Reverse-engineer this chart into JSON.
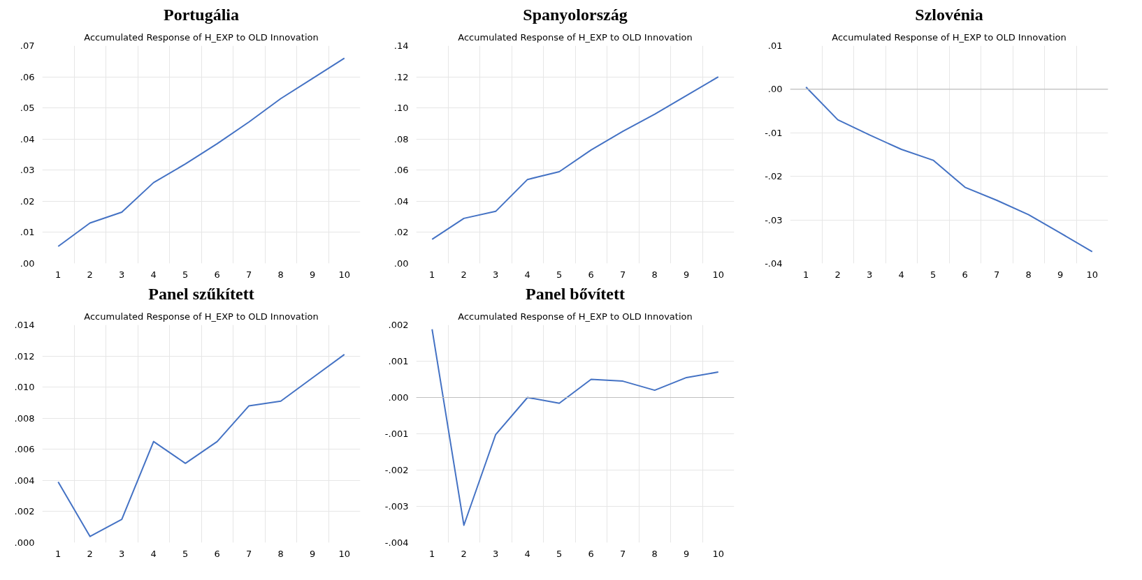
{
  "chart_data": [
    {
      "type": "line",
      "title": "Portugália",
      "subtitle": "Accumulated Response of H_EXP to OLD Innovation",
      "categories": [
        "1",
        "2",
        "3",
        "4",
        "5",
        "6",
        "7",
        "8",
        "9",
        "10"
      ],
      "series": [
        {
          "color": "#4472c4",
          "values": [
            0.0055,
            0.013,
            0.0165,
            0.026,
            0.032,
            0.0385,
            0.0455,
            0.053,
            0.0595,
            0.066
          ]
        }
      ],
      "ylim": [
        0,
        0.07
      ],
      "yticks": [
        {
          "value": 0,
          "label": ".00"
        },
        {
          "value": 0.01,
          "label": ".01"
        },
        {
          "value": 0.02,
          "label": ".02"
        },
        {
          "value": 0.03,
          "label": ".03"
        },
        {
          "value": 0.04,
          "label": ".04"
        },
        {
          "value": 0.05,
          "label": ".05"
        },
        {
          "value": 0.06,
          "label": ".06"
        },
        {
          "value": 0.07,
          "label": ".07"
        }
      ],
      "grid": true
    },
    {
      "type": "line",
      "title": "Spanyolország",
      "subtitle": "Accumulated Response of H_EXP to OLD Innovation",
      "categories": [
        "1",
        "2",
        "3",
        "4",
        "5",
        "6",
        "7",
        "8",
        "9",
        "10"
      ],
      "series": [
        {
          "color": "#4472c4",
          "values": [
            0.0155,
            0.029,
            0.0335,
            0.054,
            0.059,
            0.073,
            0.085,
            0.096,
            0.108,
            0.12
          ]
        }
      ],
      "ylim": [
        0,
        0.14
      ],
      "yticks": [
        {
          "value": 0,
          "label": ".00"
        },
        {
          "value": 0.02,
          "label": ".02"
        },
        {
          "value": 0.04,
          "label": ".04"
        },
        {
          "value": 0.06,
          "label": ".06"
        },
        {
          "value": 0.08,
          "label": ".08"
        },
        {
          "value": 0.1,
          "label": ".10"
        },
        {
          "value": 0.12,
          "label": ".12"
        },
        {
          "value": 0.14,
          "label": ".14"
        }
      ],
      "grid": true
    },
    {
      "type": "line",
      "title": "Szlovénia",
      "subtitle": "Accumulated Response of H_EXP to OLD Innovation",
      "categories": [
        "1",
        "2",
        "3",
        "4",
        "5",
        "6",
        "7",
        "8",
        "9",
        "10"
      ],
      "series": [
        {
          "color": "#4472c4",
          "values": [
            0.0005,
            -0.007,
            -0.0105,
            -0.0138,
            -0.0163,
            -0.0225,
            -0.0255,
            -0.0288,
            -0.033,
            -0.0373
          ]
        }
      ],
      "ylim": [
        -0.04,
        0.01
      ],
      "yticks": [
        {
          "value": -0.04,
          "label": "-.04"
        },
        {
          "value": -0.03,
          "label": "-.03"
        },
        {
          "value": -0.02,
          "label": "-.02"
        },
        {
          "value": -0.01,
          "label": "-.01"
        },
        {
          "value": 0,
          "label": ".00"
        },
        {
          "value": 0.01,
          "label": ".01"
        }
      ],
      "grid": true,
      "ref_lines": [
        {
          "axis": "y",
          "value": 0,
          "color": "#bfbfbf"
        }
      ]
    },
    {
      "type": "line",
      "title": "Panel szűkített",
      "subtitle": "Accumulated Response of H_EXP to OLD Innovation",
      "categories": [
        "1",
        "2",
        "3",
        "4",
        "5",
        "6",
        "7",
        "8",
        "9",
        "10"
      ],
      "series": [
        {
          "color": "#4472c4",
          "values": [
            0.0039,
            0.0004,
            0.0015,
            0.0065,
            0.0051,
            0.0065,
            0.0088,
            0.0091,
            0.0106,
            0.0121
          ]
        }
      ],
      "ylim": [
        0,
        0.014
      ],
      "yticks": [
        {
          "value": 0,
          "label": ".000"
        },
        {
          "value": 0.002,
          "label": ".002"
        },
        {
          "value": 0.004,
          "label": ".004"
        },
        {
          "value": 0.006,
          "label": ".006"
        },
        {
          "value": 0.008,
          "label": ".008"
        },
        {
          "value": 0.01,
          "label": ".010"
        },
        {
          "value": 0.012,
          "label": ".012"
        },
        {
          "value": 0.014,
          "label": ".014"
        }
      ],
      "grid": true
    },
    {
      "type": "line",
      "title": "Panel bővített",
      "subtitle": "Accumulated Response of H_EXP to OLD Innovation",
      "categories": [
        "1",
        "2",
        "3",
        "4",
        "5",
        "6",
        "7",
        "8",
        "9",
        "10"
      ],
      "series": [
        {
          "color": "#4472c4",
          "values": [
            0.00188,
            -0.00352,
            -0.00102,
            0.0,
            -0.00016,
            0.0005,
            0.00045,
            0.0002,
            0.00055,
            0.0007
          ]
        }
      ],
      "ylim": [
        -0.004,
        0.002
      ],
      "yticks": [
        {
          "value": -0.004,
          "label": "-.004"
        },
        {
          "value": -0.003,
          "label": "-.003"
        },
        {
          "value": -0.002,
          "label": "-.002"
        },
        {
          "value": -0.001,
          "label": "-.001"
        },
        {
          "value": 0,
          "label": ".000"
        },
        {
          "value": 0.001,
          "label": ".001"
        },
        {
          "value": 0.002,
          "label": ".002"
        }
      ],
      "grid": true,
      "ref_lines": [
        {
          "axis": "y",
          "value": 0,
          "color": "#bfbfbf"
        }
      ]
    }
  ]
}
